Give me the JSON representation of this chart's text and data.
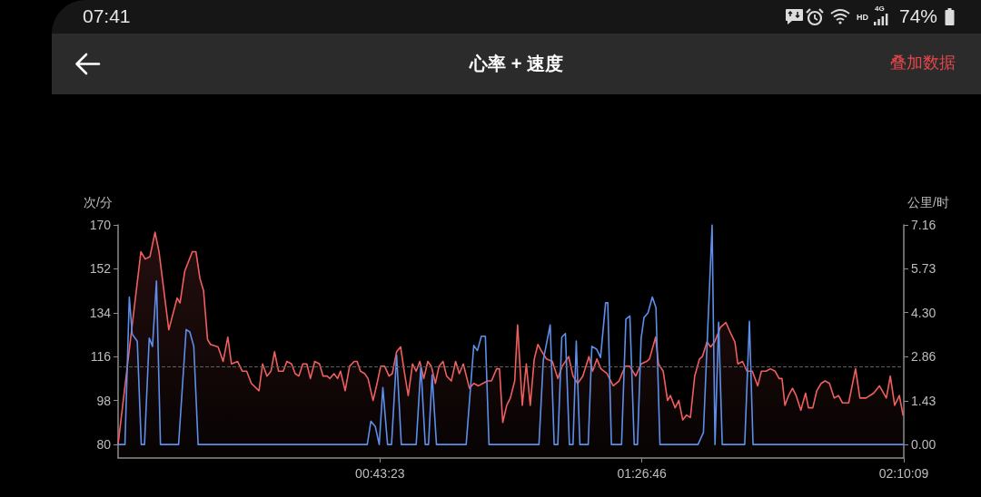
{
  "chart_data": {
    "type": "line",
    "title": "心率 + 速度",
    "ylabel": "次/分",
    "y2label": "公里/时",
    "annotations": [
      "07:41",
      "HD",
      "4G",
      "74%",
      "叠加数据"
    ],
    "xlim": [
      0,
      2.1692
    ],
    "xticks": [
      {
        "value": 0.7231,
        "label": "00:43:23"
      },
      {
        "value": 1.4461,
        "label": "01:26:46"
      },
      {
        "value": 2.1692,
        "label": "02:10:09"
      }
    ],
    "ylim": [
      74.4,
      170
    ],
    "yticks": [
      80,
      98,
      116,
      134,
      152,
      170
    ],
    "y2lim": [
      -0.44,
      7.16
    ],
    "y2ticks": [
      {
        "value": 0,
        "label": "0.00"
      },
      1.43,
      2.86,
      {
        "value": 4.3,
        "label": "4.30"
      },
      5.73,
      7.16
    ],
    "ref_lines": [
      {
        "axis": "y",
        "value": 112,
        "color": "#5e5e5e",
        "line_style": "dashed"
      }
    ],
    "series": [
      {
        "type": "area",
        "color": "#f05f5f",
        "x": [
          0,
          0.063,
          0.075,
          0.088,
          0.102,
          0.113,
          0.14,
          0.163,
          0.171,
          0.184,
          0.205,
          0.215,
          0.226,
          0.236,
          0.247,
          0.255,
          0.276,
          0.29,
          0.303,
          0.313,
          0.33,
          0.343,
          0.355,
          0.368,
          0.389,
          0.399,
          0.411,
          0.422,
          0.432,
          0.443,
          0.456,
          0.466,
          0.479,
          0.489,
          0.499,
          0.51,
          0.521,
          0.531,
          0.543,
          0.556,
          0.566,
          0.577,
          0.585,
          0.596,
          0.606,
          0.614,
          0.627,
          0.639,
          0.652,
          0.66,
          0.669,
          0.681,
          0.69,
          0.704,
          0.715,
          0.725,
          0.736,
          0.748,
          0.757,
          0.769,
          0.78,
          0.79,
          0.801,
          0.813,
          0.823,
          0.833,
          0.844,
          0.855,
          0.865,
          0.876,
          0.886,
          0.897,
          0.907,
          0.92,
          0.932,
          0.942,
          0.953,
          0.97,
          0.982,
          0.995,
          1.007,
          1.02,
          1.031,
          1.045,
          1.053,
          1.062,
          1.073,
          1.083,
          1.095,
          1.103,
          1.116,
          1.127,
          1.138,
          1.149,
          1.159,
          1.17,
          1.183,
          1.199,
          1.214,
          1.226,
          1.244,
          1.256,
          1.269,
          1.283,
          1.3,
          1.31,
          1.322,
          1.333,
          1.35,
          1.367,
          1.383,
          1.4,
          1.413,
          1.429,
          1.444,
          1.459,
          1.467,
          1.484,
          1.492,
          1.505,
          1.517,
          1.525,
          1.538,
          1.548,
          1.559,
          1.569,
          1.58,
          1.592,
          1.605,
          1.613,
          1.626,
          1.636,
          1.647,
          1.663,
          1.678,
          1.693,
          1.703,
          1.711,
          1.724,
          1.736,
          1.751,
          1.766,
          1.776,
          1.789,
          1.801,
          1.814,
          1.825,
          1.833,
          1.841,
          1.851,
          1.862,
          1.872,
          1.885,
          1.898,
          1.906,
          1.918,
          1.929,
          1.941,
          1.952,
          1.964,
          1.977,
          1.989,
          2.0,
          2.017,
          2.036,
          2.048,
          2.065,
          2.086,
          2.102,
          2.121,
          2.132,
          2.144,
          2.157,
          2.167
        ],
        "values": [
          80,
          159,
          156,
          157,
          167,
          159,
          127,
          140,
          138,
          151,
          159,
          159,
          148,
          143,
          123,
          121,
          120,
          114,
          124,
          113,
          114,
          110,
          110,
          105,
          102,
          113,
          108,
          110,
          118,
          110,
          110,
          114,
          113,
          109,
          108,
          113,
          113,
          107,
          114,
          113,
          108,
          108,
          107,
          109,
          107,
          110,
          102,
          112,
          114,
          114,
          110,
          109,
          107,
          98,
          105,
          112,
          112,
          108,
          109,
          118,
          120,
          110,
          100,
          113,
          110,
          114,
          107,
          114,
          112,
          105,
          112,
          114,
          108,
          106,
          114,
          109,
          113,
          103,
          105,
          104,
          105,
          106,
          106,
          111,
          111,
          89,
          96,
          99,
          106,
          129,
          96,
          113,
          96,
          115,
          121,
          118,
          115,
          114,
          107,
          112,
          116,
          108,
          105,
          108,
          116,
          110,
          115,
          111,
          109,
          104,
          106,
          112,
          112,
          108,
          113,
          114,
          115,
          124,
          113,
          110,
          98,
          100,
          95,
          98,
          90,
          92,
          91,
          108,
          115,
          116,
          122,
          120,
          122,
          128,
          130,
          125,
          122,
          113,
          114,
          110,
          110,
          104,
          110,
          110,
          111,
          110,
          107,
          107,
          96,
          100,
          103,
          100,
          94,
          101,
          95,
          95,
          102,
          105,
          106,
          105,
          99,
          100,
          97,
          97,
          111,
          99,
          99,
          101,
          104,
          99,
          108,
          96,
          100,
          92
        ]
      },
      {
        "axis": "y2",
        "color": "#5d8fea",
        "x": [
          0,
          0.019,
          0.031,
          0.039,
          0.053,
          0.064,
          0.073,
          0.086,
          0.095,
          0.106,
          0.117,
          0.167,
          0.188,
          0.198,
          0.209,
          0.221,
          0.688,
          0.698,
          0.71,
          0.721,
          0.731,
          0.744,
          0.755,
          0.769,
          0.782,
          0.823,
          0.836,
          0.848,
          0.857,
          0.867,
          0.879,
          0.961,
          0.982,
          0.992,
          1.003,
          1.014,
          1.024,
          1.162,
          1.174,
          1.193,
          1.204,
          1.214,
          1.225,
          1.235,
          1.246,
          1.256,
          1.265,
          1.275,
          1.298,
          1.308,
          1.321,
          1.332,
          1.346,
          1.352,
          1.362,
          1.39,
          1.402,
          1.413,
          1.425,
          1.434,
          1.444,
          1.452,
          1.463,
          1.475,
          1.485,
          1.496,
          1.601,
          1.616,
          1.64,
          1.648,
          1.658,
          1.668,
          1.73,
          1.743,
          1.753,
          2.169
        ],
        "values": [
          0,
          0,
          4.81,
          3.6,
          3.37,
          0,
          0,
          3.47,
          3.2,
          5.33,
          0,
          0,
          3.75,
          3.67,
          3.2,
          0,
          0,
          0.76,
          0.59,
          0,
          1.86,
          0,
          0,
          2.91,
          0,
          0,
          2.56,
          0,
          0,
          2.27,
          0,
          0,
          3.23,
          3.06,
          3.53,
          3.53,
          0,
          0,
          2.76,
          3.9,
          0,
          0,
          3.5,
          3.62,
          0,
          0,
          3.37,
          0,
          0,
          3.2,
          3.11,
          2.84,
          4.62,
          4.62,
          0,
          0,
          4.09,
          4.19,
          0,
          0,
          3.45,
          4.14,
          4.29,
          4.81,
          4.46,
          0,
          0,
          0.39,
          7.16,
          0,
          3.99,
          0,
          0,
          4.02,
          0,
          0
        ]
      }
    ]
  }
}
